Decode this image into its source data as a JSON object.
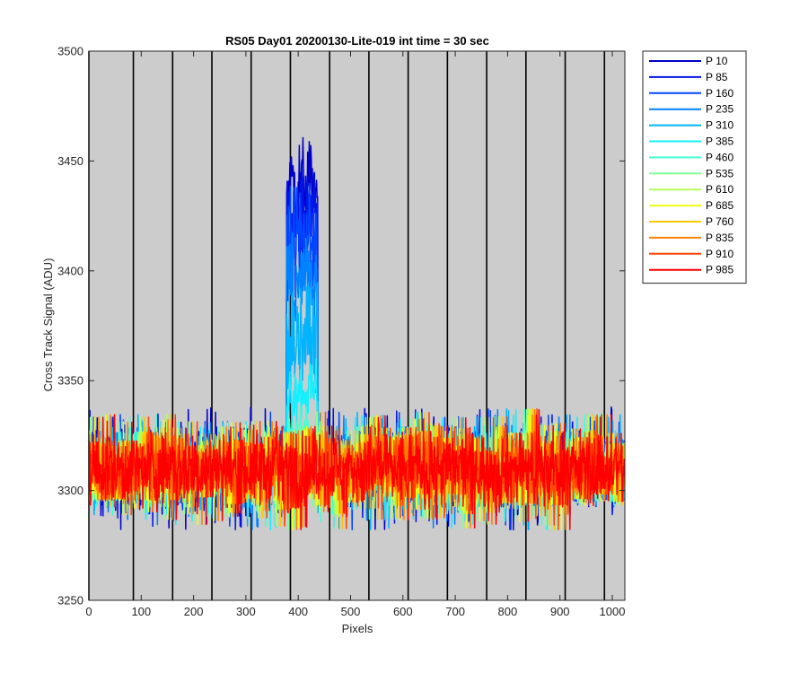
{
  "chart_data": {
    "type": "line",
    "title": "RS05 Day01 20200130-Lite-019 int time = 30 sec",
    "xlabel": "Pixels",
    "ylabel": "Cross Track Signal (ADU)",
    "xlim": [
      0,
      1024
    ],
    "ylim": [
      3250,
      3500
    ],
    "xticks": [
      0,
      100,
      200,
      300,
      400,
      500,
      600,
      700,
      800,
      900,
      1000
    ],
    "yticks": [
      3250,
      3300,
      3350,
      3400,
      3450,
      3500
    ],
    "plot_background": "#cccccc",
    "grid": false,
    "vertical_lines_x": [
      0,
      85,
      160,
      235,
      310,
      385,
      460,
      535,
      610,
      685,
      760,
      835,
      910,
      985
    ],
    "legend_position": "outside-top-right",
    "baseline_mean": 3310,
    "baseline_noise_range": [
      3272,
      3340
    ],
    "peak_region": {
      "x_start": 378,
      "x_end": 437
    },
    "series": [
      {
        "name": "P 10",
        "color": "#0000c8",
        "peak_level": 3440,
        "peak_max": 3461
      },
      {
        "name": "P 85",
        "color": "#0014e6",
        "peak_level": 3428,
        "peak_max": 3450
      },
      {
        "name": "P 160",
        "color": "#0046ff",
        "peak_level": 3415,
        "peak_max": 3440
      },
      {
        "name": "P 235",
        "color": "#0082ff",
        "peak_level": 3395,
        "peak_max": 3420
      },
      {
        "name": "P 310",
        "color": "#00b4ff",
        "peak_level": 3370,
        "peak_max": 3395
      },
      {
        "name": "P 385",
        "color": "#14f0ff",
        "peak_level": 3345,
        "peak_max": 3360
      },
      {
        "name": "P 460",
        "color": "#46ffd2",
        "peak_level": 3325,
        "peak_max": 3340
      },
      {
        "name": "P 535",
        "color": "#82ff96",
        "peak_level": 3315,
        "peak_max": 3330
      },
      {
        "name": "P 610",
        "color": "#b4ff5a",
        "peak_level": 3310,
        "peak_max": 3325
      },
      {
        "name": "P 685",
        "color": "#f0ff14",
        "peak_level": 3310,
        "peak_max": 3320
      },
      {
        "name": "P 760",
        "color": "#ffc800",
        "peak_level": 3310,
        "peak_max": 3320
      },
      {
        "name": "P 835",
        "color": "#ff8200",
        "peak_level": 3310,
        "peak_max": 3320
      },
      {
        "name": "P 910",
        "color": "#ff4600",
        "peak_level": 3310,
        "peak_max": 3320
      },
      {
        "name": "P 985",
        "color": "#ff0000",
        "peak_level": 3310,
        "peak_max": 3320
      }
    ]
  }
}
